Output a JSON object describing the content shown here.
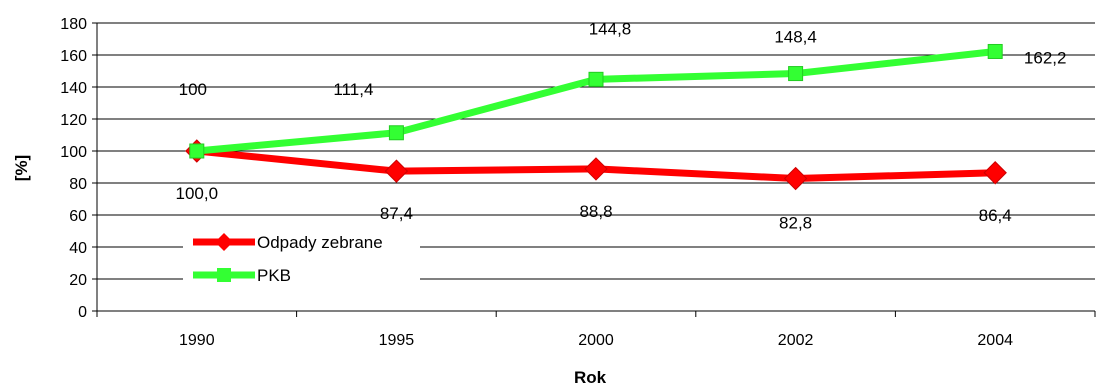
{
  "chart_data": {
    "type": "line",
    "title": "",
    "xlabel": "Rok",
    "ylabel": "[%]",
    "categories": [
      "1990",
      "1995",
      "2000",
      "2002",
      "2004"
    ],
    "ylim": [
      0,
      180
    ],
    "yticks": [
      0,
      20,
      40,
      60,
      80,
      100,
      120,
      140,
      160,
      180
    ],
    "grid": true,
    "legend_position": "lower-left",
    "series": [
      {
        "name": "Odpady zebrane",
        "color": "#ff0000",
        "marker": "diamond",
        "values": [
          100.0,
          87.4,
          88.8,
          82.8,
          86.4
        ],
        "labels": [
          "100,0",
          "87,4",
          "88,8",
          "82,8",
          "86,4"
        ]
      },
      {
        "name": "PKB",
        "color": "#33ff33",
        "marker": "square",
        "values": [
          100,
          111.4,
          144.8,
          148.4,
          162.2
        ],
        "labels": [
          "100",
          "111,4",
          "144,8",
          "148,4",
          "162,2"
        ]
      }
    ]
  }
}
